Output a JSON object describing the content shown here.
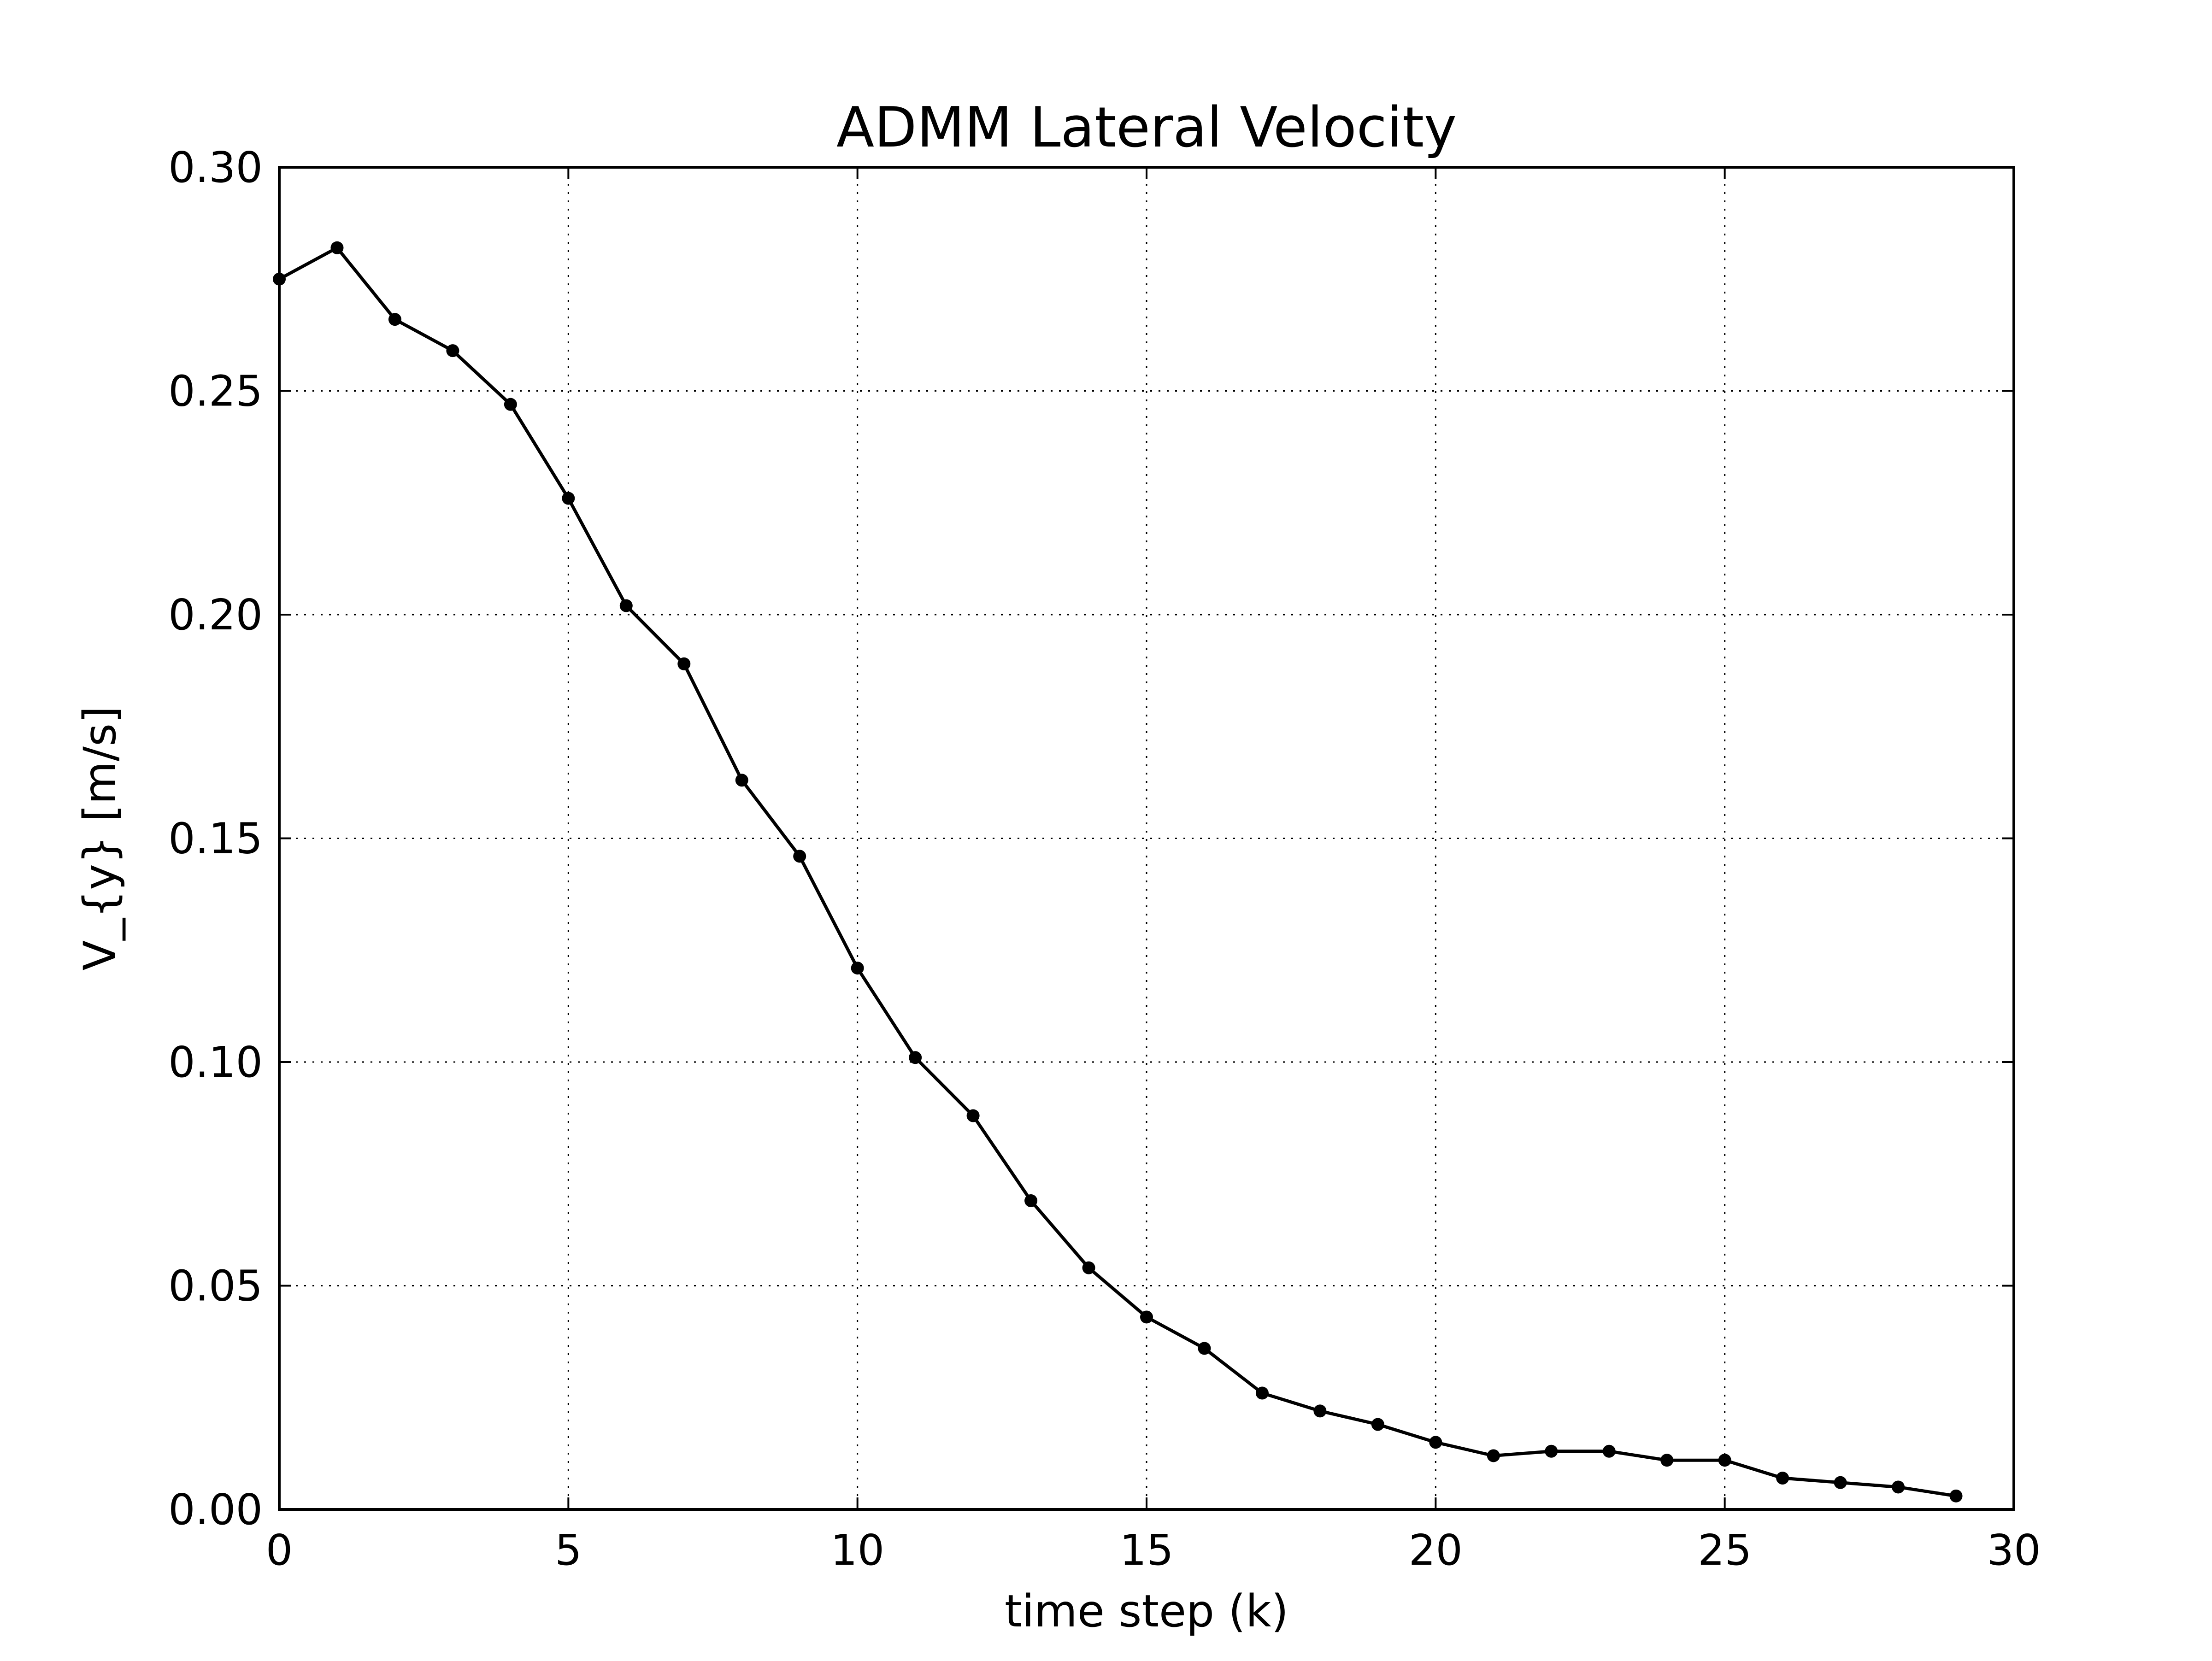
{
  "chart_data": {
    "type": "line",
    "title": "ADMM Lateral Velocity",
    "xlabel": "time step (k)",
    "ylabel": "V_{y} [m/s]",
    "xlim": [
      0,
      30
    ],
    "ylim": [
      0,
      0.3
    ],
    "xticks": [
      0,
      5,
      10,
      15,
      20,
      25,
      30
    ],
    "yticks": [
      0,
      0.05,
      0.1,
      0.15,
      0.2,
      0.25,
      0.3
    ],
    "xtick_labels": [
      "0",
      "5",
      "10",
      "15",
      "20",
      "25",
      "30"
    ],
    "ytick_labels": [
      "0.00",
      "0.05",
      "0.10",
      "0.15",
      "0.20",
      "0.25",
      "0.30"
    ],
    "grid": true,
    "legend": "none",
    "series": [
      {
        "color": "#000000",
        "marker": "circle",
        "x": [
          0,
          1,
          2,
          3,
          4,
          5,
          6,
          7,
          8,
          9,
          10,
          11,
          12,
          13,
          14,
          15,
          16,
          17,
          18,
          19,
          20,
          21,
          22,
          23,
          24,
          25,
          26,
          27,
          28,
          29
        ],
        "y": [
          0.275,
          0.282,
          0.266,
          0.259,
          0.247,
          0.226,
          0.202,
          0.189,
          0.163,
          0.146,
          0.121,
          0.101,
          0.088,
          0.069,
          0.054,
          0.043,
          0.036,
          0.026,
          0.022,
          0.019,
          0.015,
          0.012,
          0.013,
          0.013,
          0.011,
          0.011,
          0.007,
          0.006,
          0.005,
          0.003
        ]
      }
    ]
  }
}
